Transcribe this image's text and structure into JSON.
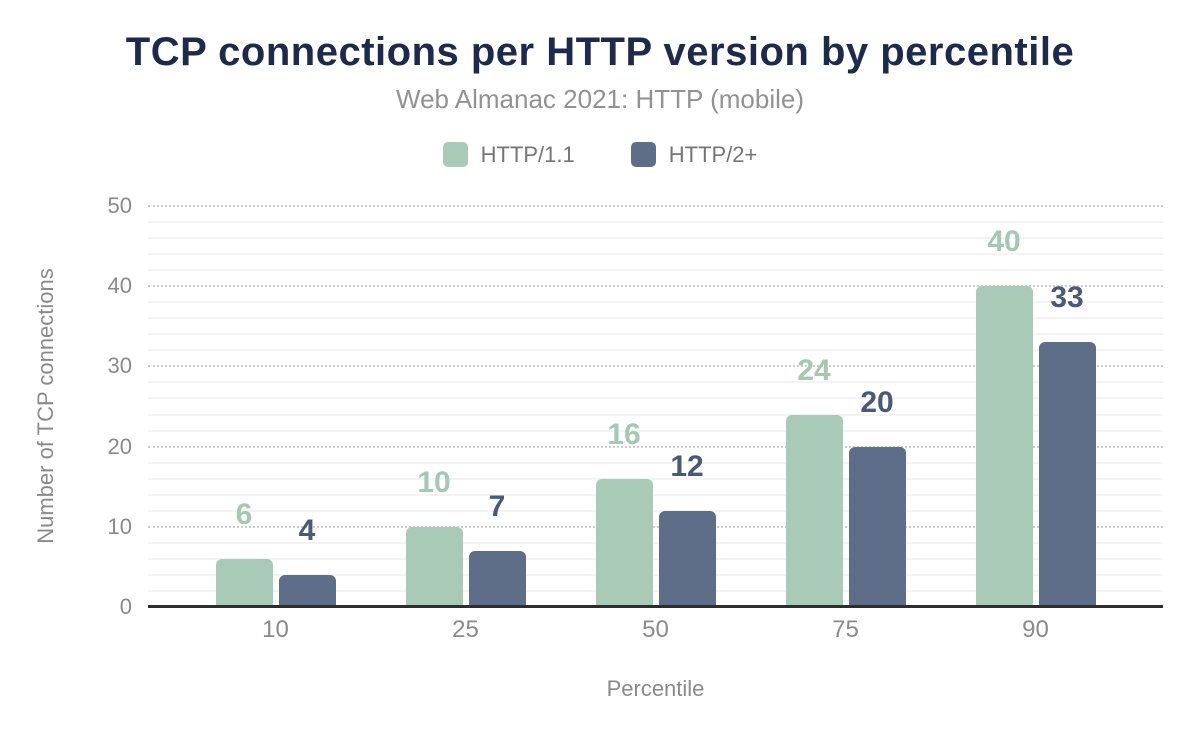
{
  "chart_data": {
    "type": "bar",
    "title": "TCP connections per HTTP version by percentile",
    "subtitle": "Web Almanac 2021: HTTP (mobile)",
    "xlabel": "Percentile",
    "ylabel": "Number of TCP connections",
    "categories": [
      "10",
      "25",
      "50",
      "75",
      "90"
    ],
    "series": [
      {
        "name": "HTTP/1.1",
        "values": [
          6,
          10,
          16,
          24,
          40
        ],
        "color": "#a8cab6",
        "label_color": "#a5c8b3"
      },
      {
        "name": "HTTP/2+",
        "values": [
          4,
          7,
          12,
          20,
          33
        ],
        "color": "#5e6e89",
        "label_color": "#4a5a76"
      }
    ],
    "ylim": [
      0,
      50
    ],
    "y_ticks": [
      0,
      10,
      20,
      30,
      40,
      50
    ],
    "y_minor_step": 2,
    "grid": "major-dotted-minor-solid",
    "legend_position": "top-center",
    "value_labels": true,
    "colors": {
      "title": "#1e2a4c",
      "subtitle": "#929292",
      "axis_text": "#8a8a8a",
      "legend_text": "#757575",
      "axis_line": "#2e2e2e",
      "major_grid": "#cbcbcb",
      "minor_grid": "#f3f3f3",
      "background": "#ffffff"
    }
  }
}
